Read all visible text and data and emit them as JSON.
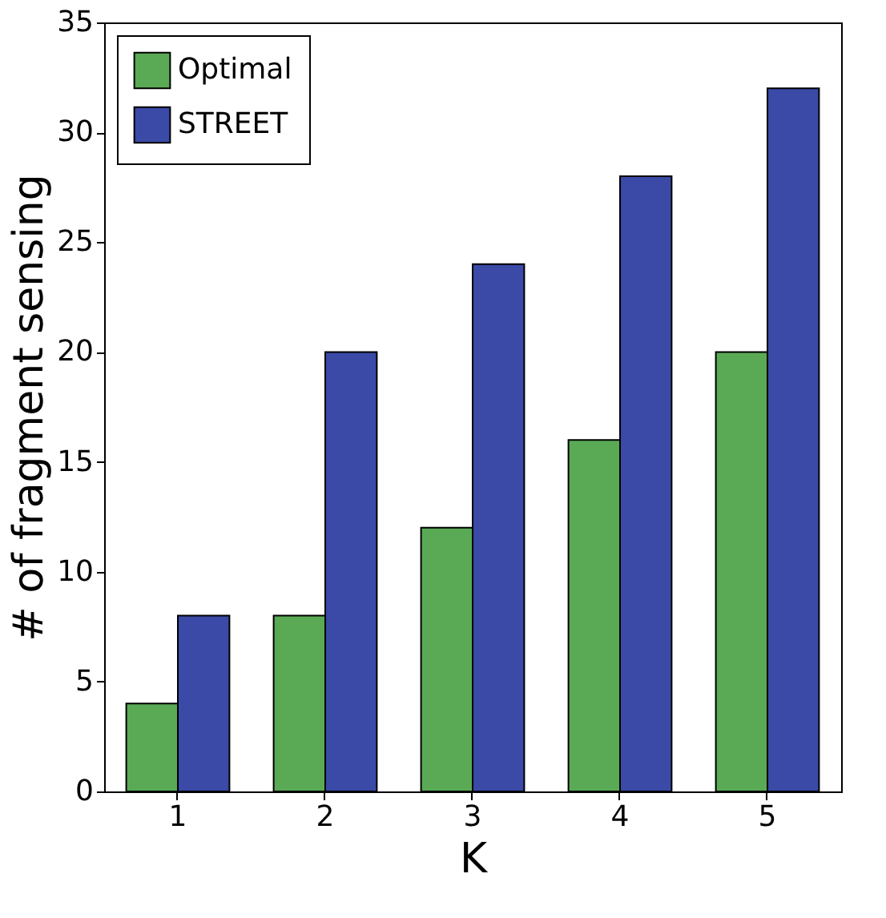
{
  "chart_data": {
    "type": "bar",
    "xlabel": "K",
    "ylabel": "# of fragment sensing",
    "categories": [
      "1",
      "2",
      "3",
      "4",
      "5"
    ],
    "series": [
      {
        "name": "Optimal",
        "color": "#5aaa55",
        "values": [
          4,
          8,
          12,
          16,
          20
        ]
      },
      {
        "name": "STREET",
        "color": "#3a4aa6",
        "values": [
          8,
          20,
          24,
          28,
          32
        ]
      }
    ],
    "ylim": [
      0,
      35
    ],
    "yticks": [
      0,
      5,
      10,
      15,
      20,
      25,
      30,
      35
    ],
    "legend": "top left",
    "grid": false
  }
}
